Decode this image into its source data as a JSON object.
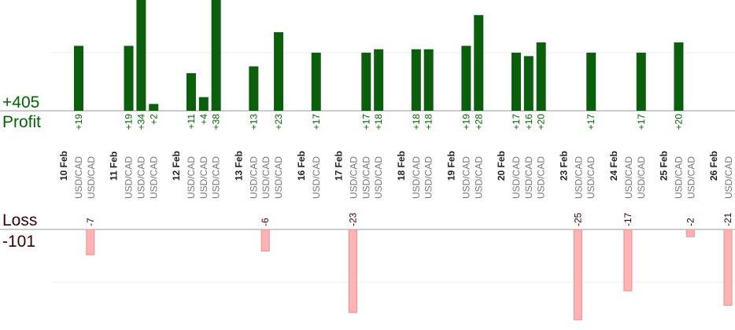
{
  "summary": {
    "total_profit": "+405",
    "profit_label": "Profit",
    "loss_label": "Loss",
    "total_loss": "-101"
  },
  "colors": {
    "profit_bar": "#0b5e0b",
    "profit_text": "#006400",
    "loss_bar": "#ffb3b3",
    "loss_bar_stroke": "#f08c8c",
    "loss_text": "#3a0000",
    "axis": "#999999",
    "grid": "#eeeeee",
    "pair_text": "#777777"
  },
  "chart_data": {
    "type": "bar",
    "pair": "USD/CAD",
    "dates": [
      {
        "label": "10 Feb",
        "trades": [
          {
            "profit": 19
          },
          {
            "loss": -7
          }
        ]
      },
      {
        "label": "11 Feb",
        "trades": [
          {
            "profit": 19
          },
          {
            "profit": 34
          },
          {
            "profit": 2
          }
        ]
      },
      {
        "label": "12 Feb",
        "trades": [
          {
            "profit": 11
          },
          {
            "profit": 4
          },
          {
            "profit": 38
          }
        ]
      },
      {
        "label": "13 Feb",
        "trades": [
          {
            "profit": 13
          },
          {
            "loss": -6
          },
          {
            "profit": 23
          }
        ]
      },
      {
        "label": "16 Feb",
        "trades": [
          {
            "profit": 17
          }
        ]
      },
      {
        "label": "17 Feb",
        "trades": [
          {
            "loss": -23
          },
          {
            "profit": 17
          },
          {
            "profit": 18
          }
        ]
      },
      {
        "label": "18 Feb",
        "trades": [
          {
            "profit": 18
          },
          {
            "profit": 18
          }
        ]
      },
      {
        "label": "19 Feb",
        "trades": [
          {
            "profit": 19
          },
          {
            "profit": 28
          }
        ]
      },
      {
        "label": "20 Feb",
        "trades": [
          {
            "profit": 17
          },
          {
            "profit": 16
          },
          {
            "profit": 20
          }
        ]
      },
      {
        "label": "23 Feb",
        "trades": [
          {
            "loss": -25
          },
          {
            "profit": 17
          }
        ]
      },
      {
        "label": "24 Feb",
        "trades": [
          {
            "loss": -17
          },
          {
            "profit": 17
          }
        ]
      },
      {
        "label": "25 Feb",
        "trades": [
          {
            "profit": 20
          },
          {
            "loss": -2
          }
        ]
      },
      {
        "label": "26 Feb",
        "trades": [
          {
            "loss": -21
          }
        ]
      }
    ]
  }
}
